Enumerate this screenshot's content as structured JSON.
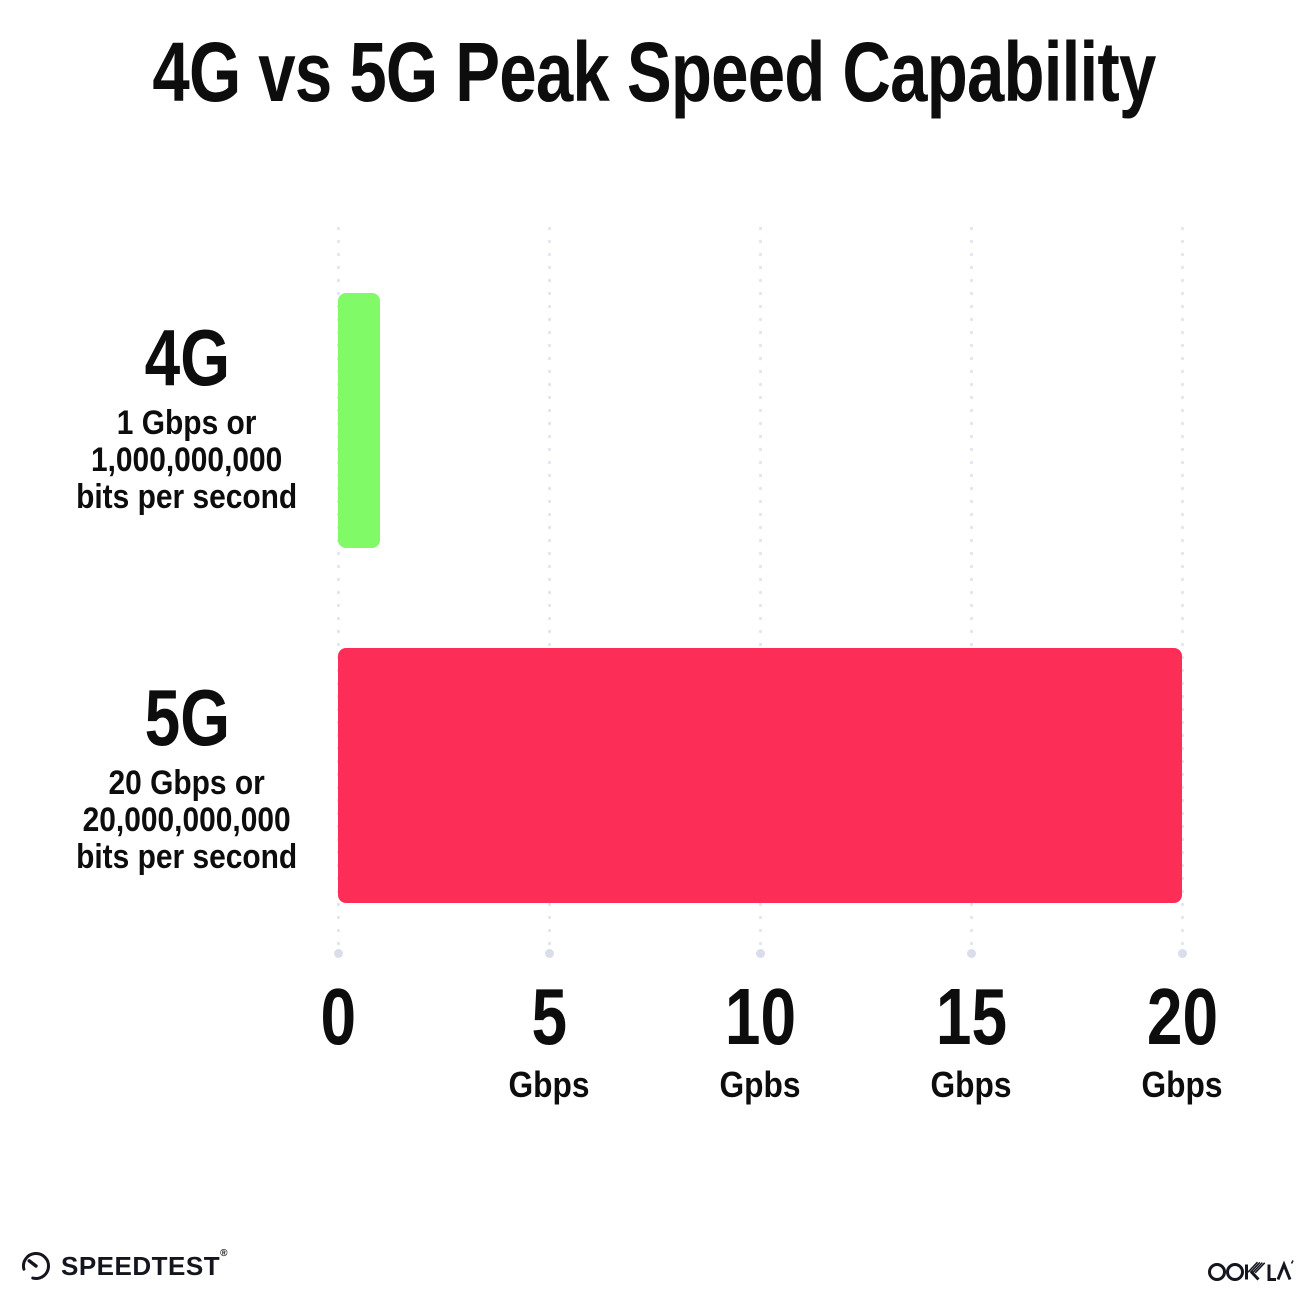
{
  "chart_data": {
    "type": "bar",
    "orientation": "horizontal",
    "title": "4G vs 5G Peak Speed Capability",
    "categories": [
      "4G",
      "5G"
    ],
    "values": [
      1,
      20
    ],
    "value_unit": "Gbps",
    "xlabel": "",
    "ylabel": "",
    "xlim": [
      0,
      20
    ],
    "grid": "dotted vertical gridlines every 5 Gbps, larger terminal dot at bottom",
    "legend": "none",
    "rows": [
      {
        "label": "4G",
        "sublines": [
          "1 Gbps or",
          "1,000,000,000",
          "bits per second"
        ],
        "value_gbps": 1,
        "color": "#80FA66"
      },
      {
        "label": "5G",
        "sublines": [
          "20 Gbps or",
          "20,000,000,000",
          "bits per second"
        ],
        "value_gbps": 20,
        "color": "#FC2E58"
      }
    ],
    "x_ticks": [
      {
        "value": "0",
        "unit": ""
      },
      {
        "value": "5",
        "unit": "Gbps"
      },
      {
        "value": "10",
        "unit": "Gpbs"
      },
      {
        "value": "15",
        "unit": "Gbps"
      },
      {
        "value": "20",
        "unit": "Gbps"
      }
    ]
  },
  "footer": {
    "left_logo_text": "SPEEDTEST",
    "left_logo_mark": "®",
    "left_logo_icon": "speedtest-gauge-icon",
    "right_logo_text": "OOKLA",
    "right_logo_mark": "™"
  },
  "colors": {
    "background": "#FFFFFF",
    "title_text": "#0D0D0D",
    "bar_4g_green": "#80FA66",
    "bar_5g_pink": "#FC2E58",
    "grid_dot": "#E2E6F0",
    "grid_end_dot": "#D9DEEA",
    "logo_text": "#15151F"
  }
}
